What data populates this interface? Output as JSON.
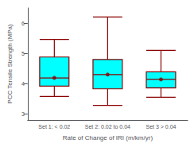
{
  "chart_data": {
    "type": "box",
    "xlabel": "Rate of Change of IRI (m/km/yr)",
    "ylabel": "PCC Tensile Strength (MPa)",
    "categories": [
      "Set 1: < 0.02",
      "Set 2: 0.02 to 0.04",
      "Set 3 > 0.04"
    ],
    "whisker_low": [
      3.58,
      3.28,
      3.55
    ],
    "q1": [
      3.92,
      3.83,
      3.86
    ],
    "median": [
      4.19,
      4.3,
      4.14
    ],
    "q3": [
      4.88,
      4.8,
      4.39
    ],
    "whisker_high": [
      5.46,
      6.2,
      5.1
    ],
    "mean": [
      4.19,
      4.3,
      4.14
    ],
    "color": "cyan",
    "ylim": [
      2.8,
      6.5
    ],
    "yticks": [
      3,
      4,
      5,
      6
    ]
  }
}
